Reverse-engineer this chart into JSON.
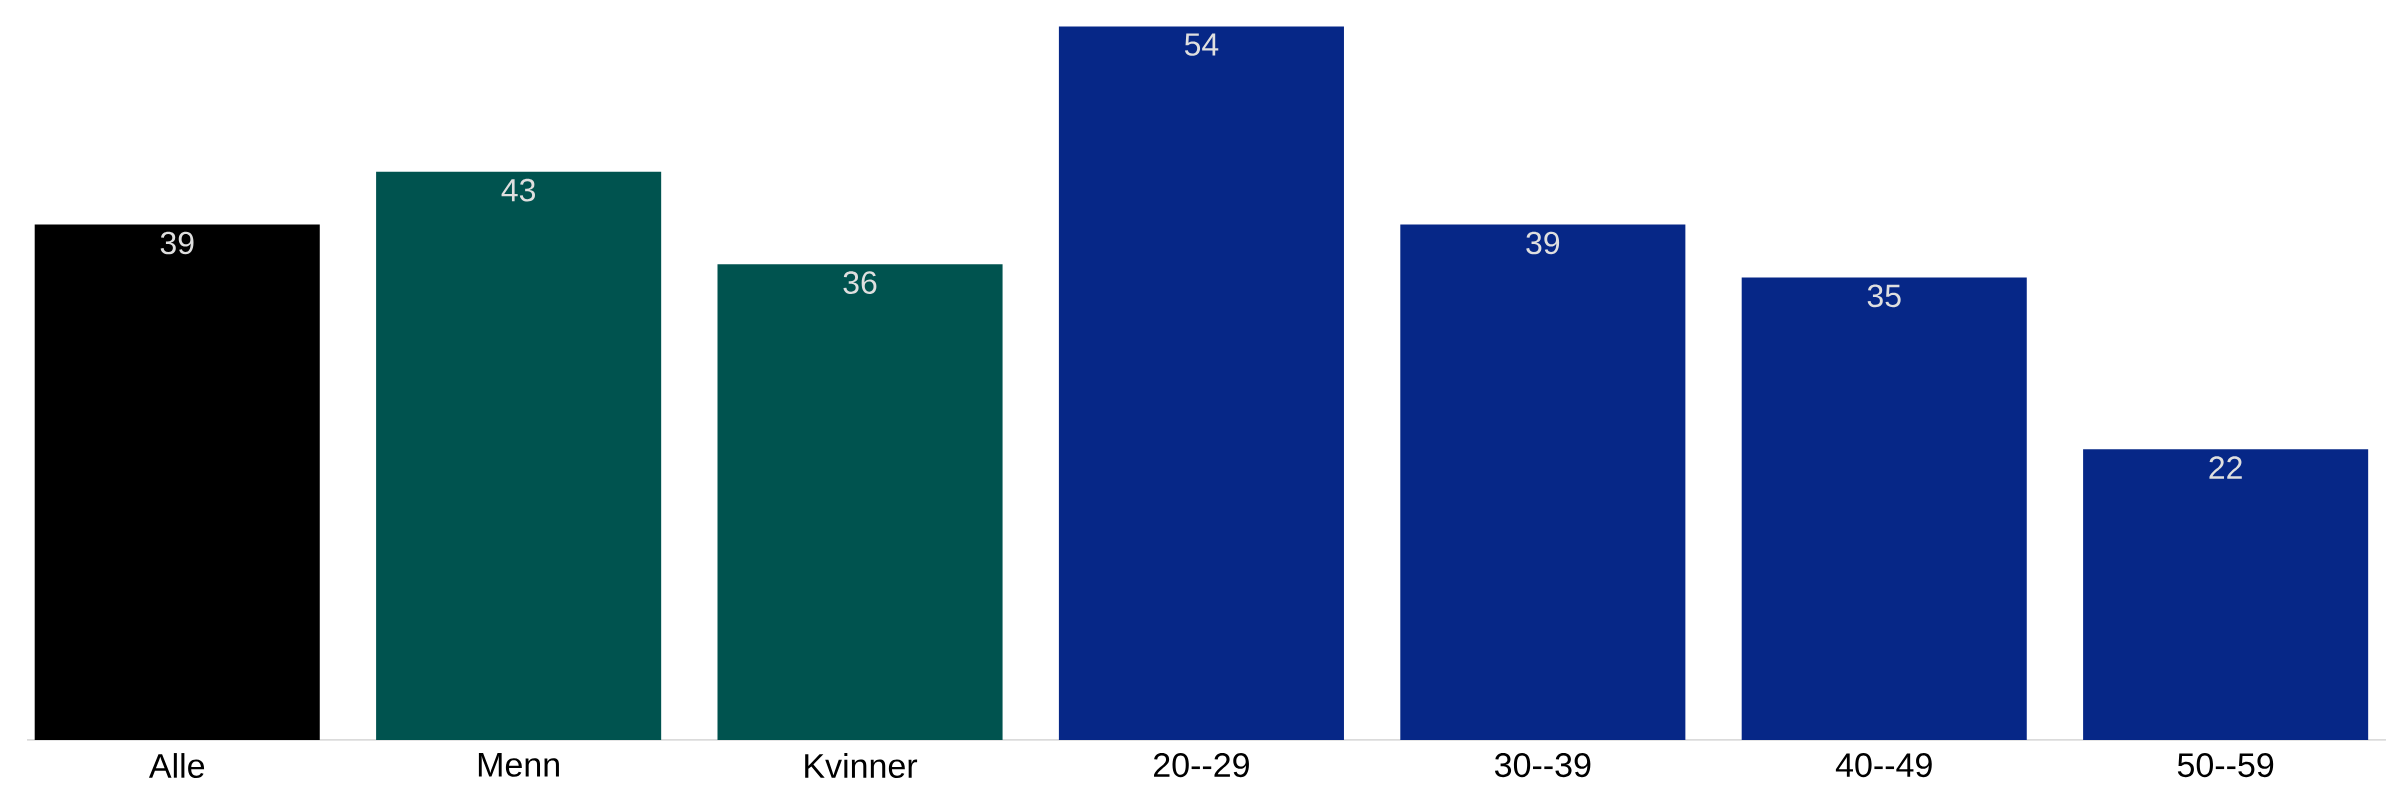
{
  "chart_data": {
    "type": "bar",
    "categories": [
      "Alle",
      "Menn",
      "Kvinner",
      "20--29",
      "30--39",
      "40--49",
      "50--59"
    ],
    "values": [
      39,
      43,
      36,
      54,
      39,
      35,
      22
    ],
    "colors": [
      "#000000",
      "#00534f",
      "#00534f",
      "#062787",
      "#062787",
      "#062787",
      "#062787"
    ],
    "data_labels": true
  }
}
